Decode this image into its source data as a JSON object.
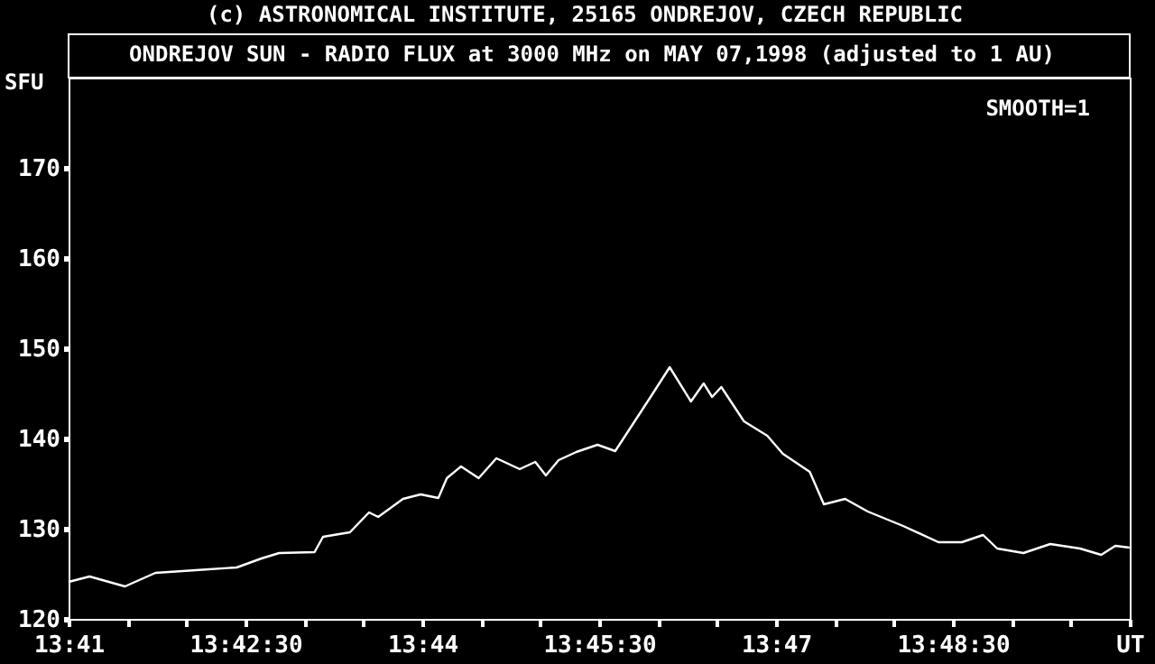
{
  "chart_data": {
    "type": "line",
    "title": "ONDREJOV SUN - RADIO FLUX at 3000 MHz on MAY 07,1998 (adjusted to 1 AU)",
    "annotations": [
      "(c) ASTRONOMICAL INSTITUTE, 25165 ONDREJOV, CZECH REPUBLIC",
      "SMOOTH=1"
    ],
    "ylabel": "SFU",
    "x": [
      13.68333,
      13.6863,
      13.6913,
      13.6956,
      13.7013,
      13.7071,
      13.7106,
      13.7131,
      13.7181,
      13.7193,
      13.7231,
      13.7258,
      13.7271,
      13.7306,
      13.7331,
      13.7356,
      13.7368,
      13.7388,
      13.7413,
      13.7438,
      13.7471,
      13.7493,
      13.7508,
      13.7526,
      13.7551,
      13.7581,
      13.7606,
      13.7656,
      13.7683,
      13.7713,
      13.7731,
      13.7743,
      13.7756,
      13.7788,
      13.7821,
      13.7843,
      13.7881,
      13.7901,
      13.7931,
      13.7963,
      13.8013,
      13.8063,
      13.8096,
      13.8126,
      13.8146,
      13.8183,
      13.8221,
      13.8263,
      13.8293,
      13.8313,
      13.8333
    ],
    "series": [
      {
        "color": "#ffffff",
        "values": [
          124.1,
          124.7,
          123.6,
          125.1,
          125.4,
          125.7,
          126.7,
          127.3,
          127.4,
          129.1,
          129.6,
          131.8,
          131.3,
          133.3,
          133.8,
          133.4,
          135.6,
          136.9,
          135.6,
          137.8,
          136.6,
          137.4,
          135.9,
          137.6,
          138.5,
          139.3,
          138.6,
          144.6,
          147.9,
          144.1,
          146.1,
          144.6,
          145.7,
          141.9,
          140.3,
          138.3,
          136.3,
          132.7,
          133.3,
          131.9,
          130.3,
          128.5,
          128.5,
          129.3,
          127.8,
          127.3,
          128.3,
          127.8,
          127.1,
          128.1,
          127.9
        ]
      }
    ],
    "xlim": [
      13.68333,
      13.83333
    ],
    "xticks": [
      {
        "value": 13.68333,
        "label": "13:41"
      },
      {
        "value": 13.69167,
        "label": null
      },
      {
        "value": 13.7,
        "label": null
      },
      {
        "value": 13.70833,
        "label": "13:42:30"
      },
      {
        "value": 13.71667,
        "label": null
      },
      {
        "value": 13.725,
        "label": null
      },
      {
        "value": 13.73333,
        "label": "13:44"
      },
      {
        "value": 13.74167,
        "label": null
      },
      {
        "value": 13.75,
        "label": null
      },
      {
        "value": 13.75833,
        "label": "13:45:30"
      },
      {
        "value": 13.76667,
        "label": null
      },
      {
        "value": 13.775,
        "label": null
      },
      {
        "value": 13.78333,
        "label": "13:47"
      },
      {
        "value": 13.79167,
        "label": null
      },
      {
        "value": 13.8,
        "label": null
      },
      {
        "value": 13.80833,
        "label": "13:48:30"
      },
      {
        "value": 13.81667,
        "label": null
      },
      {
        "value": 13.825,
        "label": null
      },
      {
        "value": 13.83333,
        "label": "UT"
      }
    ],
    "ylim": [
      120,
      180
    ],
    "yticks": [
      120,
      130,
      140,
      150,
      160,
      170
    ],
    "grid": false,
    "line_style": "solid",
    "marker": "none"
  }
}
